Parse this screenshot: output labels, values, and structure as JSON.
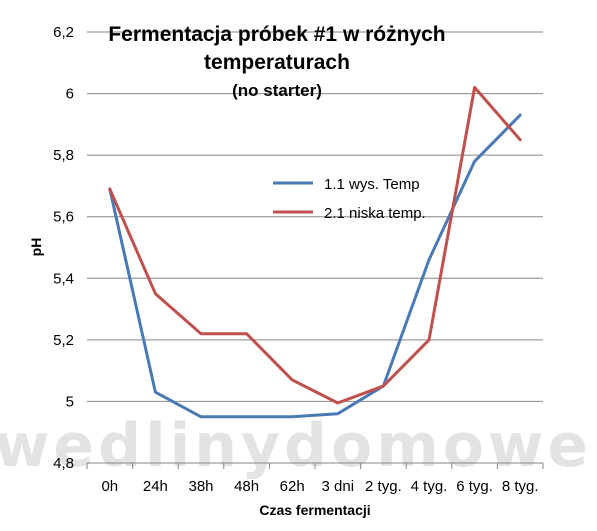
{
  "watermark": "wedlinydomowe.p",
  "chart_data": {
    "type": "line",
    "title_line1": "Fermentacja próbek #1 w różnych",
    "title_line2": "temperaturach",
    "subtitle": "(no starter)",
    "xlabel": "Czas fermentacji",
    "ylabel": "pH",
    "ylim": [
      4.8,
      6.2
    ],
    "yticks": [
      "4,8",
      "5",
      "5,2",
      "5,4",
      "5,6",
      "5,8",
      "6",
      "6,2"
    ],
    "categories": [
      "0h",
      "24h",
      "38h",
      "48h",
      "62h",
      "3 dni",
      "2 tyg.",
      "4 tyg.",
      "6 tyg.",
      "8 tyg."
    ],
    "grid": true,
    "legend_position": "center",
    "series": [
      {
        "name": "1.1 wys. Temp",
        "color": "#4a7ab5",
        "values": [
          5.69,
          5.03,
          4.95,
          4.95,
          4.95,
          4.96,
          5.05,
          5.46,
          5.78,
          5.93
        ]
      },
      {
        "name": "2.1 niska temp.",
        "color": "#c0504d",
        "values": [
          5.69,
          5.35,
          5.22,
          5.22,
          5.07,
          4.995,
          5.05,
          5.2,
          6.02,
          5.85
        ]
      }
    ]
  }
}
